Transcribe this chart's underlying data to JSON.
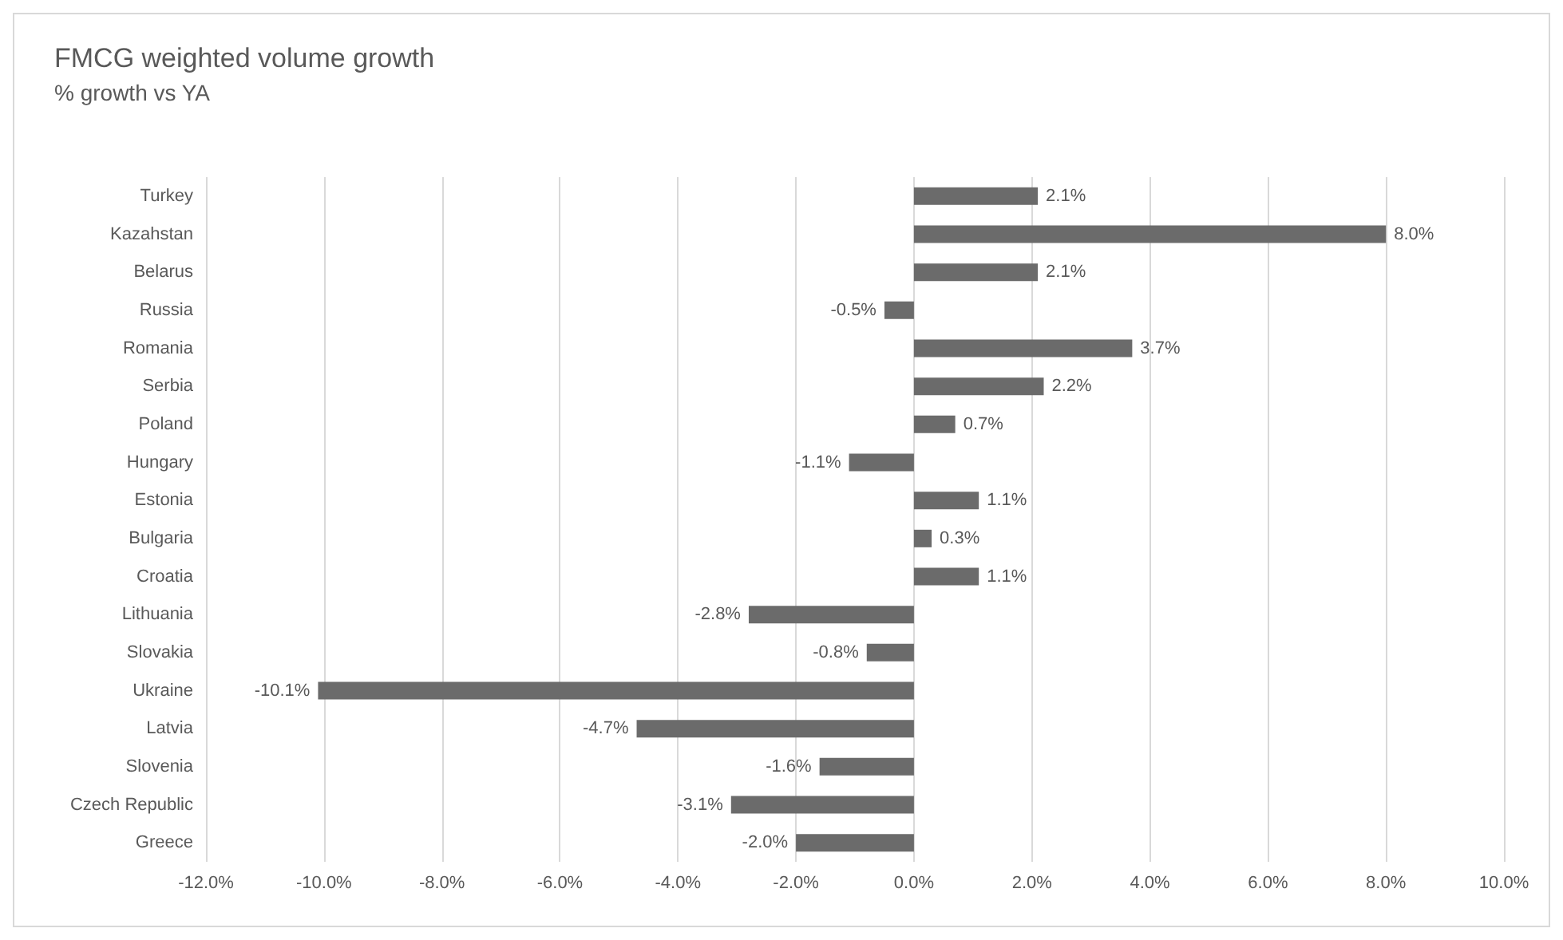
{
  "chart_data": {
    "type": "bar",
    "orientation": "horizontal",
    "title": "FMCG weighted volume growth",
    "subtitle": "% growth vs YA",
    "categories": [
      "Turkey",
      "Kazahstan",
      "Belarus",
      "Russia",
      "Romania",
      "Serbia",
      "Poland",
      "Hungary",
      "Estonia",
      "Bulgaria",
      "Croatia",
      "Lithuania",
      "Slovakia",
      "Ukraine",
      "Latvia",
      "Slovenia",
      "Czech Republic",
      "Greece"
    ],
    "values": [
      2.1,
      8.0,
      2.1,
      -0.5,
      3.7,
      2.2,
      0.7,
      -1.1,
      1.1,
      0.3,
      1.1,
      -2.8,
      -0.8,
      -10.1,
      -4.7,
      -1.6,
      -3.1,
      -2.0
    ],
    "value_labels": [
      "2.1%",
      "8.0%",
      "2.1%",
      "-0.5%",
      "3.7%",
      "2.2%",
      "0.7%",
      "-1.1%",
      "1.1%",
      "0.3%",
      "1.1%",
      "-2.8%",
      "-0.8%",
      "-10.1%",
      "-4.7%",
      "-1.6%",
      "-3.1%",
      "-2.0%"
    ],
    "color": "#6b6b6b",
    "xlim": [
      -12,
      10
    ],
    "xticks": [
      {
        "value": -12,
        "label": "-12.0%"
      },
      {
        "value": -10,
        "label": "-10.0%"
      },
      {
        "value": -8,
        "label": "-8.0%"
      },
      {
        "value": -6,
        "label": "-6.0%"
      },
      {
        "value": -4,
        "label": "-4.0%"
      },
      {
        "value": -2,
        "label": "-2.0%"
      },
      {
        "value": 0,
        "label": "0.0%"
      },
      {
        "value": 2,
        "label": "2.0%"
      },
      {
        "value": 4,
        "label": "4.0%"
      },
      {
        "value": 6,
        "label": "6.0%"
      },
      {
        "value": 8,
        "label": "8.0%"
      },
      {
        "value": 10,
        "label": "10.0%"
      }
    ],
    "grid": "x"
  }
}
